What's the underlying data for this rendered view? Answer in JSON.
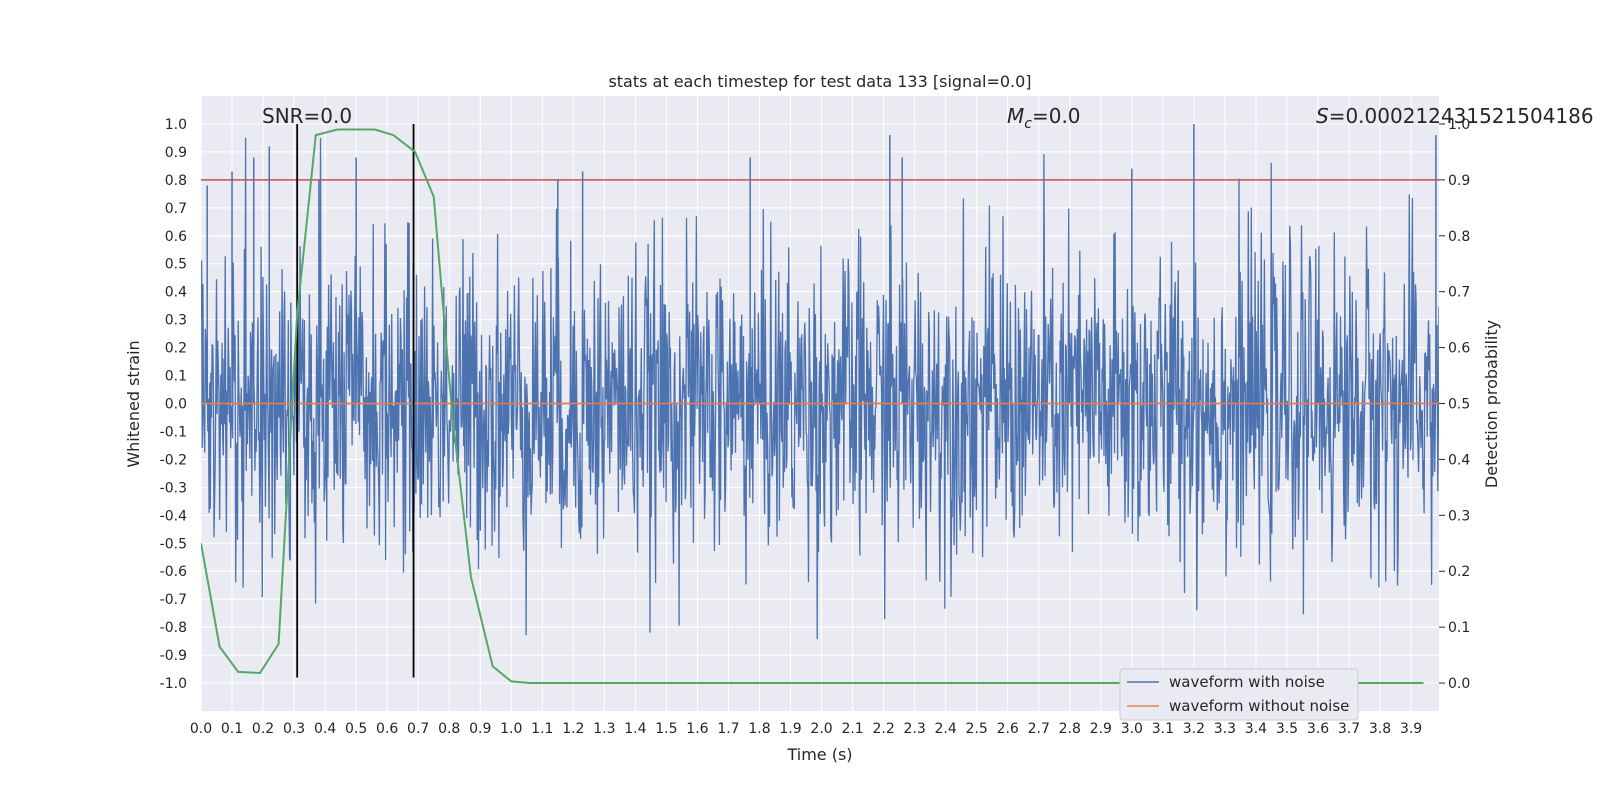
{
  "chart_data": {
    "type": "line",
    "title": "stats at each timestep for test data 133 [signal=0.0]",
    "xlabel": "Time (s)",
    "ylabel": "Whitened strain",
    "y2label": "Detection probability",
    "xlim": [
      0.0,
      3.99
    ],
    "ylim": [
      -1.1,
      1.1
    ],
    "y2lim": [
      -0.05,
      1.05
    ],
    "x_ticks": [
      0.0,
      0.1,
      0.2,
      0.3,
      0.4,
      0.5,
      0.6,
      0.7,
      0.8,
      0.9,
      1.0,
      1.1,
      1.2,
      1.3,
      1.4,
      1.5,
      1.6,
      1.7,
      1.8,
      1.9,
      2.0,
      2.1,
      2.2,
      2.3,
      2.4,
      2.5,
      2.6,
      2.7,
      2.8,
      2.9,
      3.0,
      3.1,
      3.2,
      3.3,
      3.4,
      3.5,
      3.6,
      3.7,
      3.8,
      3.9
    ],
    "y_ticks": [
      1.0,
      0.9,
      0.8,
      0.7,
      0.6,
      0.5,
      0.4,
      0.3,
      0.2,
      0.1,
      0.0,
      -0.1,
      -0.2,
      -0.3,
      -0.4,
      -0.5,
      -0.6,
      -0.7,
      -0.8,
      -0.9,
      -1.0
    ],
    "y2_ticks": [
      1.0,
      0.9,
      0.8,
      0.7,
      0.6,
      0.5,
      0.4,
      0.3,
      0.2,
      0.1,
      0.0
    ],
    "grid": true,
    "legend_position": "lower-right",
    "annotations": {
      "snr": "SNR=0.0",
      "mc": "M",
      "mc_sub": "c",
      "mc_val": "=0.0",
      "s": "S",
      "s_val": "=0.000212431521504186"
    },
    "series": [
      {
        "name": "waveform with noise",
        "color": "#4c72b0",
        "description_type": "dense noise",
        "approx_range": [
          -1.0,
          1.0
        ],
        "peaks_x": [
          0.02,
          0.1,
          0.17,
          0.22,
          0.38,
          0.5,
          1.15,
          1.23,
          1.77,
          2.22,
          2.26,
          3.0,
          3.2,
          3.98
        ],
        "peaks_y": [
          0.78,
          0.83,
          0.88,
          0.92,
          0.8,
          0.88,
          0.8,
          0.83,
          0.88,
          0.96,
          0.88,
          0.84,
          1.0,
          0.96
        ]
      },
      {
        "name": "waveform without noise",
        "color": "#dd8452",
        "y": 0.0
      },
      {
        "name": "detection probability",
        "color": "#55a868",
        "axis": "right",
        "x": [
          0.0,
          0.06,
          0.12,
          0.19,
          0.25,
          0.31,
          0.37,
          0.44,
          0.5,
          0.56,
          0.62,
          0.69,
          0.75,
          0.81,
          0.87,
          0.94,
          1.0,
          1.06,
          1.12,
          3.94
        ],
        "y": [
          0.25,
          0.065,
          0.02,
          0.018,
          0.07,
          0.66,
          0.98,
          0.99,
          0.99,
          0.99,
          0.98,
          0.95,
          0.87,
          0.48,
          0.19,
          0.03,
          0.003,
          0.0,
          0.0,
          0.0
        ]
      }
    ],
    "hlines_right_axis": [
      {
        "y": 0.9,
        "color": "#c44e52"
      },
      {
        "y": 0.5,
        "color": "#c44e52"
      }
    ],
    "vlines": [
      {
        "x": 0.31,
        "color": "#000000"
      },
      {
        "x": 0.685,
        "color": "#000000"
      }
    ]
  }
}
